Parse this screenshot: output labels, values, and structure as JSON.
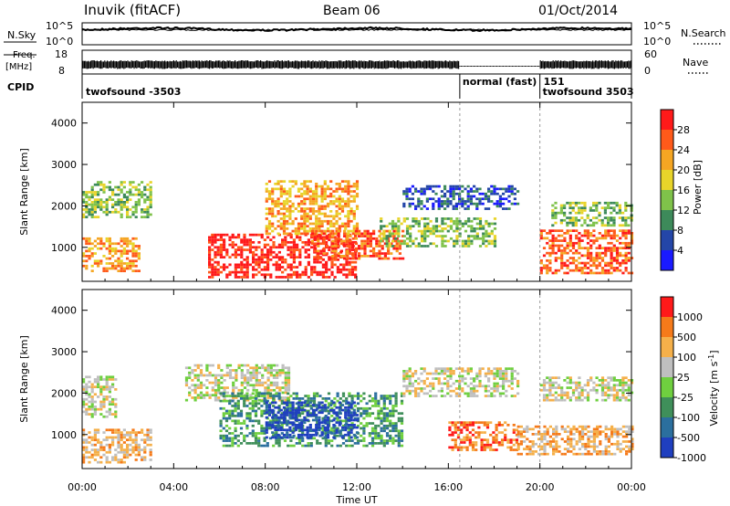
{
  "header": {
    "station": "Inuvik (fitACF)",
    "beam": "Beam 06",
    "date": "01/Oct/2014"
  },
  "top_panels": {
    "nsky_label": "N.Sky",
    "nsky_ticks": [
      "10^5",
      "10^0"
    ],
    "nsearch_label": "N.Search",
    "nsearch_ticks": [
      "10^5",
      "10^0"
    ],
    "freq_label_1": "Freq.",
    "freq_label_2": "[MHz]",
    "freq_ticks": [
      "18",
      "8"
    ],
    "nave_label": "Nave",
    "nave_ticks": [
      "60",
      "0"
    ],
    "cpid_label": "CPID",
    "cpid_segments": [
      {
        "label": "twofsound -3503",
        "start_hour": 0.0
      },
      {
        "label": "normal (fast)",
        "start_hour": 16.5
      },
      {
        "label": "151",
        "start_hour": 20.0
      },
      {
        "label": "twofsound 3503",
        "start_hour": 20.0
      }
    ]
  },
  "chart_data": [
    {
      "type": "heatmap",
      "panel": "Power",
      "ylabel": "Slant Range [km]",
      "ylim": [
        180,
        4500
      ],
      "yticks": [
        "1000",
        "2000",
        "3000",
        "4000"
      ],
      "xlim_hours": [
        0,
        24
      ],
      "colorbar_label": "Power [dB]",
      "colorbar_ticks": [
        "4",
        "8",
        "12",
        "16",
        "20",
        "24",
        "28"
      ],
      "colorbar_colors": [
        "#1a1aff",
        "#2446a8",
        "#3d8a5a",
        "#7fc24a",
        "#e8d42a",
        "#f5a623",
        "#ff5a1a",
        "#ff1a1a"
      ],
      "echo_bands": [
        {
          "t": [
            0,
            2.5
          ],
          "range": [
            400,
            1200
          ],
          "level": 5
        },
        {
          "t": [
            0,
            3
          ],
          "range": [
            1700,
            2600
          ],
          "level": 3
        },
        {
          "t": [
            5.5,
            12
          ],
          "range": [
            250,
            1300
          ],
          "level": 7
        },
        {
          "t": [
            8,
            12
          ],
          "range": [
            1300,
            2600
          ],
          "level": 5
        },
        {
          "t": [
            10,
            14
          ],
          "range": [
            700,
            1400
          ],
          "level": 6
        },
        {
          "t": [
            13,
            18
          ],
          "range": [
            1000,
            1700
          ],
          "level": 3
        },
        {
          "t": [
            14,
            19
          ],
          "range": [
            1900,
            2500
          ],
          "level": 1
        },
        {
          "t": [
            20,
            24
          ],
          "range": [
            350,
            1400
          ],
          "level": 6
        },
        {
          "t": [
            20.5,
            24
          ],
          "range": [
            1500,
            2100
          ],
          "level": 3
        }
      ]
    },
    {
      "type": "heatmap",
      "panel": "Velocity",
      "ylabel": "Slant Range [km]",
      "ylim": [
        180,
        4500
      ],
      "yticks": [
        "1000",
        "2000",
        "3000",
        "4000"
      ],
      "xlim_hours": [
        0,
        24
      ],
      "colorbar_label": "Velocity [m s^-1]",
      "colorbar_ticks": [
        "1000",
        "500",
        "100",
        "25",
        "-25",
        "-100",
        "-500",
        "-1000"
      ],
      "colorbar_colors": [
        "#1f3fbf",
        "#2b6f9e",
        "#3f8f5a",
        "#6fcf3f",
        "#bfbfbf",
        "#f5b04a",
        "#f57a1a",
        "#ff1a1a"
      ],
      "echo_bands": [
        {
          "t": [
            0,
            3
          ],
          "range": [
            300,
            1100
          ],
          "level": 5
        },
        {
          "t": [
            0,
            1.5
          ],
          "range": [
            1400,
            2400
          ],
          "level": 4
        },
        {
          "t": [
            4.5,
            9
          ],
          "range": [
            1800,
            2700
          ],
          "level": 4
        },
        {
          "t": [
            6,
            14
          ],
          "range": [
            700,
            2000
          ],
          "level": 2
        },
        {
          "t": [
            8,
            12
          ],
          "range": [
            900,
            1800
          ],
          "level": 0
        },
        {
          "t": [
            14,
            19
          ],
          "range": [
            1900,
            2600
          ],
          "level": 4
        },
        {
          "t": [
            16,
            19
          ],
          "range": [
            600,
            1300
          ],
          "level": 6
        },
        {
          "t": [
            19,
            24
          ],
          "range": [
            500,
            1200
          ],
          "level": 5
        },
        {
          "t": [
            20,
            24
          ],
          "range": [
            1800,
            2400
          ],
          "level": 4
        }
      ]
    }
  ],
  "x_axis": {
    "ticks": [
      "00:00",
      "04:00",
      "08:00",
      "12:00",
      "16:00",
      "20:00",
      "00:00"
    ],
    "label": "Time UT"
  }
}
